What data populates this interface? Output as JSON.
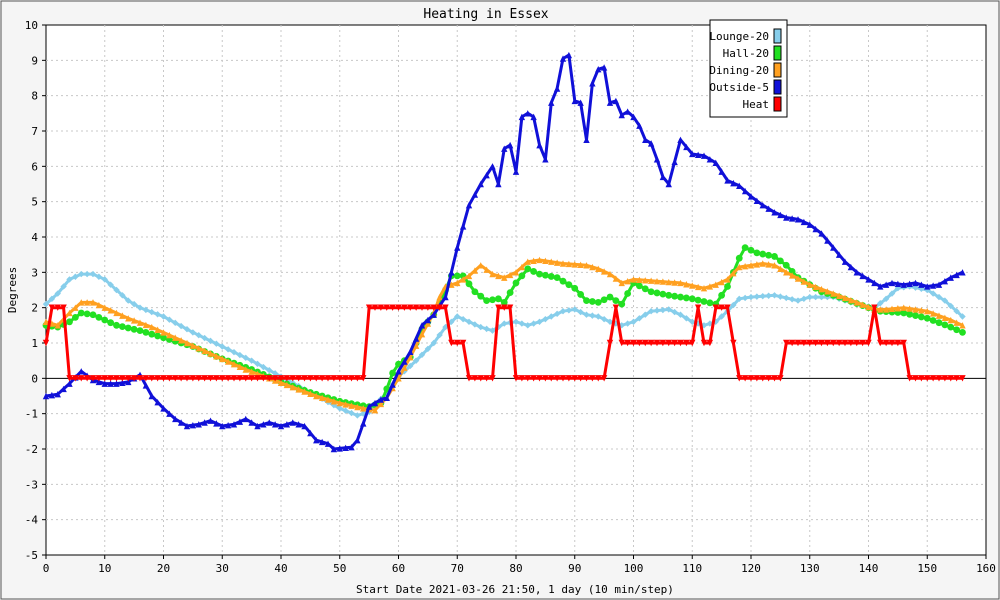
{
  "chart_data": {
    "type": "line",
    "title": "Heating in Essex",
    "xlabel": "Start Date 2021-03-26 21:50, 1 day (10 min/step)",
    "ylabel": "Degrees",
    "xlim": [
      0,
      160
    ],
    "ylim": [
      -5,
      10
    ],
    "x_ticks": [
      0,
      10,
      20,
      30,
      40,
      50,
      60,
      70,
      80,
      90,
      100,
      110,
      120,
      130,
      140,
      150,
      160
    ],
    "y_ticks": [
      -5,
      -4,
      -3,
      -2,
      -1,
      0,
      1,
      2,
      3,
      4,
      5,
      6,
      7,
      8,
      9,
      10
    ],
    "grid": true,
    "legend_position": "top-right",
    "series": [
      {
        "name": "Lounge-20",
        "color": "#87ceeb",
        "marker": "diamond",
        "points": [
          [
            0,
            2.1
          ],
          [
            2,
            2.4
          ],
          [
            4,
            2.8
          ],
          [
            6,
            2.95
          ],
          [
            8,
            2.95
          ],
          [
            10,
            2.8
          ],
          [
            12,
            2.5
          ],
          [
            14,
            2.2
          ],
          [
            16,
            2.0
          ],
          [
            20,
            1.75
          ],
          [
            25,
            1.3
          ],
          [
            30,
            0.9
          ],
          [
            35,
            0.5
          ],
          [
            40,
            0.05
          ],
          [
            45,
            -0.4
          ],
          [
            50,
            -0.85
          ],
          [
            53,
            -1.05
          ],
          [
            55,
            -0.95
          ],
          [
            58,
            -0.4
          ],
          [
            60,
            0.05
          ],
          [
            63,
            0.5
          ],
          [
            66,
            1.0
          ],
          [
            68,
            1.45
          ],
          [
            70,
            1.75
          ],
          [
            72,
            1.6
          ],
          [
            74,
            1.45
          ],
          [
            76,
            1.35
          ],
          [
            78,
            1.55
          ],
          [
            80,
            1.6
          ],
          [
            82,
            1.5
          ],
          [
            84,
            1.6
          ],
          [
            86,
            1.75
          ],
          [
            88,
            1.9
          ],
          [
            90,
            1.95
          ],
          [
            92,
            1.8
          ],
          [
            94,
            1.75
          ],
          [
            96,
            1.6
          ],
          [
            98,
            1.5
          ],
          [
            100,
            1.6
          ],
          [
            103,
            1.9
          ],
          [
            106,
            1.95
          ],
          [
            108,
            1.8
          ],
          [
            110,
            1.6
          ],
          [
            112,
            1.5
          ],
          [
            114,
            1.6
          ],
          [
            116,
            1.9
          ],
          [
            118,
            2.25
          ],
          [
            120,
            2.3
          ],
          [
            124,
            2.35
          ],
          [
            128,
            2.2
          ],
          [
            130,
            2.3
          ],
          [
            134,
            2.3
          ],
          [
            138,
            2.1
          ],
          [
            141,
            2.0
          ],
          [
            143,
            2.25
          ],
          [
            145,
            2.55
          ],
          [
            147,
            2.6
          ],
          [
            150,
            2.5
          ],
          [
            153,
            2.2
          ],
          [
            156,
            1.75
          ]
        ]
      },
      {
        "name": "Hall-20",
        "color": "#22e022",
        "marker": "circle",
        "points": [
          [
            0,
            1.5
          ],
          [
            2,
            1.45
          ],
          [
            4,
            1.6
          ],
          [
            6,
            1.85
          ],
          [
            8,
            1.8
          ],
          [
            10,
            1.65
          ],
          [
            12,
            1.5
          ],
          [
            16,
            1.35
          ],
          [
            20,
            1.15
          ],
          [
            25,
            0.9
          ],
          [
            30,
            0.55
          ],
          [
            35,
            0.25
          ],
          [
            40,
            -0.1
          ],
          [
            45,
            -0.4
          ],
          [
            50,
            -0.65
          ],
          [
            53,
            -0.75
          ],
          [
            55,
            -0.8
          ],
          [
            57,
            -0.7
          ],
          [
            58,
            -0.3
          ],
          [
            59,
            0.15
          ],
          [
            60,
            0.4
          ],
          [
            62,
            0.6
          ],
          [
            64,
            1.4
          ],
          [
            66,
            1.8
          ],
          [
            68,
            2.5
          ],
          [
            69,
            2.9
          ],
          [
            71,
            2.9
          ],
          [
            73,
            2.45
          ],
          [
            75,
            2.2
          ],
          [
            77,
            2.25
          ],
          [
            78,
            2.15
          ],
          [
            80,
            2.7
          ],
          [
            82,
            3.1
          ],
          [
            84,
            2.95
          ],
          [
            87,
            2.85
          ],
          [
            90,
            2.55
          ],
          [
            92,
            2.2
          ],
          [
            94,
            2.15
          ],
          [
            96,
            2.3
          ],
          [
            98,
            2.1
          ],
          [
            100,
            2.7
          ],
          [
            103,
            2.45
          ],
          [
            106,
            2.35
          ],
          [
            110,
            2.25
          ],
          [
            114,
            2.1
          ],
          [
            116,
            2.6
          ],
          [
            118,
            3.4
          ],
          [
            119,
            3.7
          ],
          [
            121,
            3.55
          ],
          [
            124,
            3.45
          ],
          [
            126,
            3.2
          ],
          [
            128,
            2.85
          ],
          [
            132,
            2.45
          ],
          [
            135,
            2.3
          ],
          [
            140,
            2.0
          ],
          [
            142,
            1.9
          ],
          [
            146,
            1.85
          ],
          [
            150,
            1.7
          ],
          [
            154,
            1.45
          ],
          [
            156,
            1.3
          ]
        ]
      },
      {
        "name": "Dining-20",
        "color": "#ffa020",
        "marker": "triangle",
        "points": [
          [
            0,
            1.6
          ],
          [
            2,
            1.5
          ],
          [
            4,
            1.85
          ],
          [
            6,
            2.15
          ],
          [
            8,
            2.15
          ],
          [
            10,
            2.0
          ],
          [
            14,
            1.7
          ],
          [
            18,
            1.45
          ],
          [
            22,
            1.15
          ],
          [
            26,
            0.85
          ],
          [
            30,
            0.55
          ],
          [
            34,
            0.25
          ],
          [
            38,
            0.0
          ],
          [
            42,
            -0.25
          ],
          [
            46,
            -0.5
          ],
          [
            50,
            -0.7
          ],
          [
            54,
            -0.85
          ],
          [
            56,
            -0.9
          ],
          [
            58,
            -0.55
          ],
          [
            60,
            0.0
          ],
          [
            62,
            0.6
          ],
          [
            64,
            1.25
          ],
          [
            66,
            1.85
          ],
          [
            67,
            2.3
          ],
          [
            68,
            2.6
          ],
          [
            70,
            2.7
          ],
          [
            72,
            2.9
          ],
          [
            74,
            3.2
          ],
          [
            76,
            2.95
          ],
          [
            78,
            2.85
          ],
          [
            80,
            3.0
          ],
          [
            82,
            3.3
          ],
          [
            84,
            3.35
          ],
          [
            88,
            3.25
          ],
          [
            92,
            3.2
          ],
          [
            94,
            3.1
          ],
          [
            96,
            2.95
          ],
          [
            98,
            2.7
          ],
          [
            100,
            2.8
          ],
          [
            104,
            2.75
          ],
          [
            108,
            2.7
          ],
          [
            112,
            2.55
          ],
          [
            114,
            2.65
          ],
          [
            116,
            2.8
          ],
          [
            118,
            3.15
          ],
          [
            120,
            3.2
          ],
          [
            122,
            3.25
          ],
          [
            124,
            3.2
          ],
          [
            126,
            3.0
          ],
          [
            130,
            2.65
          ],
          [
            134,
            2.4
          ],
          [
            138,
            2.15
          ],
          [
            141,
            1.95
          ],
          [
            143,
            1.95
          ],
          [
            146,
            2.0
          ],
          [
            150,
            1.9
          ],
          [
            154,
            1.65
          ],
          [
            156,
            1.5
          ]
        ]
      },
      {
        "name": "Outside-5",
        "color": "#1010d8",
        "marker": "triangle",
        "points": [
          [
            0,
            -0.5
          ],
          [
            2,
            -0.45
          ],
          [
            4,
            -0.15
          ],
          [
            6,
            0.2
          ],
          [
            8,
            -0.05
          ],
          [
            10,
            -0.15
          ],
          [
            12,
            -0.15
          ],
          [
            14,
            -0.1
          ],
          [
            16,
            0.1
          ],
          [
            18,
            -0.5
          ],
          [
            20,
            -0.85
          ],
          [
            22,
            -1.15
          ],
          [
            24,
            -1.35
          ],
          [
            26,
            -1.3
          ],
          [
            28,
            -1.2
          ],
          [
            30,
            -1.35
          ],
          [
            32,
            -1.3
          ],
          [
            34,
            -1.15
          ],
          [
            36,
            -1.35
          ],
          [
            38,
            -1.25
          ],
          [
            40,
            -1.35
          ],
          [
            42,
            -1.25
          ],
          [
            44,
            -1.35
          ],
          [
            46,
            -1.75
          ],
          [
            48,
            -1.85
          ],
          [
            49,
            -2.0
          ],
          [
            52,
            -1.95
          ],
          [
            53,
            -1.75
          ],
          [
            55,
            -0.8
          ],
          [
            57,
            -0.6
          ],
          [
            58,
            -0.55
          ],
          [
            60,
            0.2
          ],
          [
            62,
            0.75
          ],
          [
            64,
            1.5
          ],
          [
            66,
            1.8
          ],
          [
            68,
            2.3
          ],
          [
            70,
            3.7
          ],
          [
            72,
            4.9
          ],
          [
            74,
            5.5
          ],
          [
            76,
            6.0
          ],
          [
            77,
            5.5
          ],
          [
            78,
            6.5
          ],
          [
            79,
            6.6
          ],
          [
            80,
            5.85
          ],
          [
            81,
            7.4
          ],
          [
            82,
            7.5
          ],
          [
            83,
            7.4
          ],
          [
            84,
            6.6
          ],
          [
            85,
            6.2
          ],
          [
            86,
            7.8
          ],
          [
            87,
            8.2
          ],
          [
            88,
            9.05
          ],
          [
            89,
            9.15
          ],
          [
            90,
            7.85
          ],
          [
            91,
            7.8
          ],
          [
            92,
            6.75
          ],
          [
            93,
            8.35
          ],
          [
            94,
            8.75
          ],
          [
            95,
            8.8
          ],
          [
            96,
            7.8
          ],
          [
            97,
            7.85
          ],
          [
            98,
            7.45
          ],
          [
            99,
            7.55
          ],
          [
            100,
            7.4
          ],
          [
            101,
            7.15
          ],
          [
            102,
            6.75
          ],
          [
            103,
            6.65
          ],
          [
            104,
            6.2
          ],
          [
            105,
            5.7
          ],
          [
            106,
            5.5
          ],
          [
            108,
            6.75
          ],
          [
            110,
            6.35
          ],
          [
            112,
            6.3
          ],
          [
            114,
            6.1
          ],
          [
            116,
            5.6
          ],
          [
            118,
            5.45
          ],
          [
            120,
            5.15
          ],
          [
            122,
            4.9
          ],
          [
            124,
            4.7
          ],
          [
            126,
            4.55
          ],
          [
            128,
            4.5
          ],
          [
            130,
            4.35
          ],
          [
            132,
            4.1
          ],
          [
            134,
            3.7
          ],
          [
            136,
            3.3
          ],
          [
            138,
            3.0
          ],
          [
            140,
            2.8
          ],
          [
            142,
            2.6
          ],
          [
            144,
            2.7
          ],
          [
            146,
            2.65
          ],
          [
            148,
            2.7
          ],
          [
            150,
            2.6
          ],
          [
            152,
            2.65
          ],
          [
            154,
            2.85
          ],
          [
            156,
            3.0
          ]
        ]
      },
      {
        "name": "Heat",
        "color": "#ff0000",
        "marker": "triangle-down",
        "points": [
          [
            0,
            1.0
          ],
          [
            1,
            2.0
          ],
          [
            3,
            2.0
          ],
          [
            4,
            0.0
          ],
          [
            54,
            0.0
          ],
          [
            55,
            2.0
          ],
          [
            68,
            2.0
          ],
          [
            69,
            1.0
          ],
          [
            71,
            1.0
          ],
          [
            72,
            0.0
          ],
          [
            76,
            0.0
          ],
          [
            77,
            2.0
          ],
          [
            79,
            2.0
          ],
          [
            80,
            0.0
          ],
          [
            95,
            0.0
          ],
          [
            97,
            2.0
          ],
          [
            98,
            1.0
          ],
          [
            110,
            1.0
          ],
          [
            111,
            2.0
          ],
          [
            112,
            1.0
          ],
          [
            113,
            1.0
          ],
          [
            114,
            2.0
          ],
          [
            116,
            2.0
          ],
          [
            118,
            0.0
          ],
          [
            125,
            0.0
          ],
          [
            126,
            1.0
          ],
          [
            140,
            1.0
          ],
          [
            141,
            2.0
          ],
          [
            142,
            1.0
          ],
          [
            146,
            1.0
          ],
          [
            147,
            0.0
          ],
          [
            156,
            0.0
          ]
        ]
      }
    ]
  }
}
